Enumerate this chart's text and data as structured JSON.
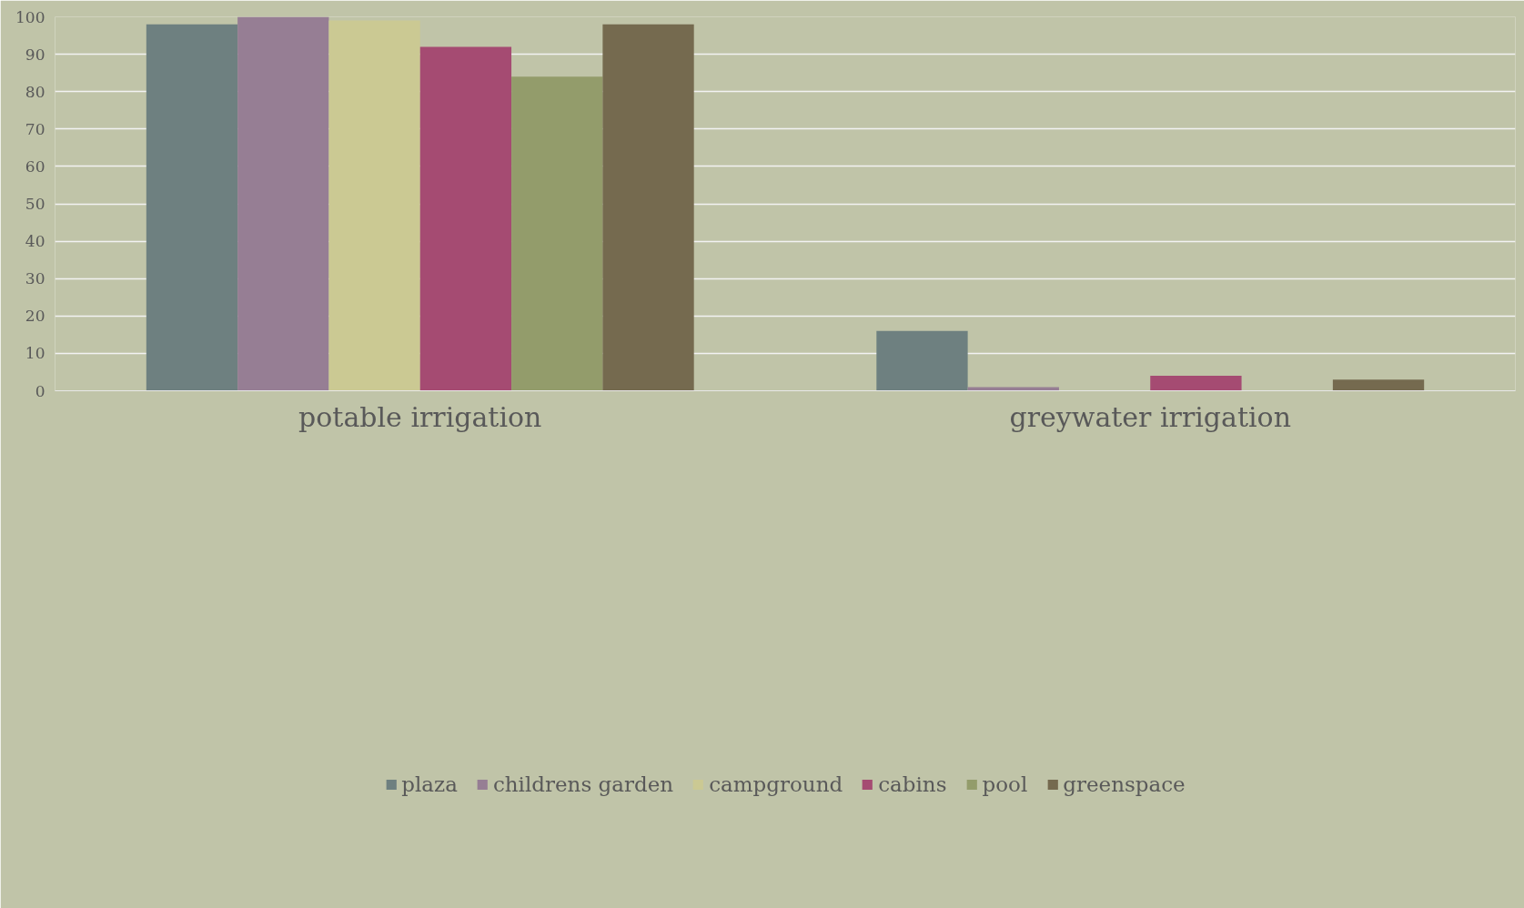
{
  "chart_data": {
    "type": "bar",
    "categories": [
      "potable irrigation",
      "greywater irrigation"
    ],
    "series": [
      {
        "name": "plaza",
        "color": "#6e8080",
        "values": [
          98,
          16
        ]
      },
      {
        "name": "childrens garden",
        "color": "#967e94",
        "values": [
          100,
          1
        ]
      },
      {
        "name": "campground",
        "color": "#cbc993",
        "values": [
          99,
          0
        ]
      },
      {
        "name": "cabins",
        "color": "#a54b72",
        "values": [
          92,
          4
        ]
      },
      {
        "name": "pool",
        "color": "#939c6b",
        "values": [
          84,
          0
        ]
      },
      {
        "name": "greenspace",
        "color": "#756a4f",
        "values": [
          98,
          3
        ]
      }
    ],
    "ylim": [
      0,
      100
    ],
    "yticks": [
      0,
      10,
      20,
      30,
      40,
      50,
      60,
      70,
      80,
      90,
      100
    ],
    "grid": "y",
    "legend": "bottom"
  }
}
